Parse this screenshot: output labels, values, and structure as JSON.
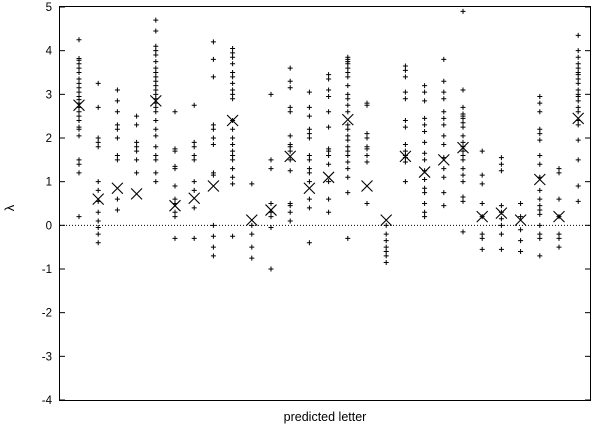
{
  "chart_data": {
    "type": "scatter",
    "title": "",
    "xlabel": "predicted letter",
    "ylabel": "λ",
    "ylim": [
      -4,
      5
    ],
    "yticks": [
      -4,
      -3,
      -2,
      -1,
      0,
      1,
      2,
      3,
      4,
      5
    ],
    "ytick_labels": [
      "-4",
      "-3",
      "-2",
      "-1",
      "0",
      "1",
      "2",
      "3",
      "4",
      "5"
    ],
    "reference_line": {
      "y": 0,
      "style": "dotted"
    },
    "grid": false,
    "legend": "none",
    "colors": {
      "marks": "#000000",
      "axis": "#000000",
      "background": "#ffffff"
    },
    "series": [
      {
        "marker": "plus",
        "groups": [
          {
            "x": 1,
            "values": [
              4.25,
              3.82,
              3.78,
              3.7,
              3.6,
              3.5,
              3.35,
              3.25,
              3.15,
              3.05,
              2.95,
              2.88,
              2.8,
              2.7,
              2.6,
              2.5,
              2.4,
              2.25,
              2.2,
              2.05,
              1.5,
              1.4,
              1.2,
              0.2
            ]
          },
          {
            "x": 2,
            "values": [
              3.25,
              2.7,
              2.0,
              1.9,
              1.8,
              1.0,
              0.8,
              0.55,
              0.3,
              0.1,
              -0.05,
              -0.2,
              -0.4
            ]
          },
          {
            "x": 3,
            "values": [
              3.1,
              2.85,
              2.6,
              2.3,
              2.2,
              2.0,
              1.6,
              1.5,
              0.6,
              0.35
            ]
          },
          {
            "x": 4,
            "values": [
              2.5,
              2.3,
              1.9,
              1.8,
              1.7,
              1.5,
              1.2
            ]
          },
          {
            "x": 5,
            "values": [
              4.7,
              4.45,
              4.1,
              4.0,
              3.9,
              3.75,
              3.6,
              3.5,
              3.4,
              3.3,
              3.2,
              3.1,
              3.0,
              2.9,
              2.8,
              2.7,
              2.6,
              2.4,
              2.2,
              2.05,
              1.8,
              1.6,
              1.5,
              1.2,
              1.0
            ]
          },
          {
            "x": 6,
            "values": [
              2.6,
              1.75,
              1.7,
              1.35,
              1.3,
              0.9,
              0.6,
              0.5,
              0.3,
              0.2,
              -0.3
            ]
          },
          {
            "x": 7,
            "values": [
              2.75,
              1.9,
              1.8,
              1.6,
              1.5,
              1.0,
              0.8,
              0.4,
              -0.3
            ]
          },
          {
            "x": 8,
            "values": [
              4.2,
              3.8,
              3.4,
              2.3,
              2.2,
              2.0,
              1.85,
              1.2,
              1.15,
              0.0,
              -0.25,
              -0.5,
              -0.7
            ]
          },
          {
            "x": 9,
            "values": [
              4.05,
              3.95,
              3.85,
              3.7,
              3.5,
              3.4,
              3.25,
              3.1,
              3.0,
              2.9,
              2.4,
              2.2,
              2.0,
              1.85,
              1.7,
              1.6,
              1.5,
              1.3,
              1.1,
              0.95,
              -0.25
            ]
          },
          {
            "x": 10,
            "values": [
              0.95,
              0.0,
              -0.2,
              -0.5,
              -0.75
            ]
          },
          {
            "x": 11,
            "values": [
              3.0,
              1.5,
              1.3,
              0.5,
              0.3,
              0.2,
              -0.05,
              -1.0
            ]
          },
          {
            "x": 12,
            "values": [
              3.6,
              3.3,
              3.15,
              2.7,
              2.6,
              2.05,
              1.85,
              1.8,
              1.7,
              1.5,
              1.25,
              0.5,
              0.45,
              0.3,
              0.1
            ]
          },
          {
            "x": 13,
            "values": [
              3.05,
              2.7,
              2.5,
              2.2,
              2.1,
              2.0,
              1.6,
              1.5,
              1.3,
              1.2,
              1.0,
              0.6,
              0.4,
              -0.4
            ]
          },
          {
            "x": 14,
            "values": [
              3.45,
              3.35,
              3.1,
              2.95,
              2.6,
              2.25,
              1.75,
              1.7,
              1.6,
              1.4,
              1.0,
              0.6,
              0.3
            ]
          },
          {
            "x": 15,
            "values": [
              3.85,
              3.8,
              3.75,
              3.7,
              3.6,
              3.5,
              3.4,
              3.2,
              3.0,
              2.9,
              2.75,
              2.6,
              2.3,
              2.2,
              2.05,
              1.95,
              1.8,
              1.7,
              1.6,
              1.45,
              1.3,
              1.1,
              0.75,
              -0.3
            ]
          },
          {
            "x": 16,
            "values": [
              2.8,
              2.75,
              2.1,
              2.0,
              1.8,
              1.75,
              1.6,
              1.45,
              0.5
            ]
          },
          {
            "x": 17,
            "values": [
              0.0,
              -0.2,
              -0.35,
              -0.5,
              -0.6,
              -0.7,
              -0.85
            ]
          },
          {
            "x": 18,
            "values": [
              3.65,
              3.55,
              3.4,
              3.05,
              2.9,
              2.4,
              2.25,
              1.85,
              1.7,
              1.6,
              1.55,
              1.45,
              1.0
            ]
          },
          {
            "x": 19,
            "values": [
              3.2,
              3.05,
              2.85,
              2.45,
              2.3,
              2.15,
              1.9,
              1.65,
              1.5,
              1.25,
              1.05,
              0.85,
              0.75,
              0.5,
              0.3,
              0.2
            ]
          },
          {
            "x": 20,
            "values": [
              3.8,
              3.3,
              3.05,
              2.9,
              2.6,
              2.45,
              2.3,
              2.05,
              1.85,
              1.55,
              1.3,
              1.1,
              0.75,
              0.45
            ]
          },
          {
            "x": 21,
            "values": [
              4.9,
              3.1,
              2.7,
              2.55,
              2.5,
              2.45,
              2.35,
              2.25,
              2.05,
              1.9,
              1.8,
              1.7,
              1.6,
              1.5,
              1.3,
              1.15,
              1.0,
              0.65,
              0.55,
              -0.15
            ]
          },
          {
            "x": 22,
            "values": [
              1.7,
              1.15,
              0.95,
              0.5,
              0.2,
              -0.2,
              -0.3,
              -0.55
            ]
          },
          {
            "x": 23,
            "values": [
              1.55,
              1.4,
              1.25,
              0.45,
              0.3,
              0.15,
              0.0,
              -0.2,
              -0.55
            ]
          },
          {
            "x": 24,
            "values": [
              0.5,
              0.2,
              -0.1,
              -0.35,
              -0.6
            ]
          },
          {
            "x": 25,
            "values": [
              2.95,
              2.8,
              2.6,
              2.2,
              2.1,
              1.95,
              1.6,
              1.4,
              1.1,
              0.8,
              0.6,
              0.45,
              0.35,
              0.25,
              0.0,
              -0.2,
              -0.3,
              -0.7
            ]
          },
          {
            "x": 26,
            "values": [
              1.3,
              1.2,
              0.6,
              0.2,
              -0.2,
              -0.3,
              -0.5
            ]
          },
          {
            "x": 27,
            "values": [
              4.35,
              4.0,
              3.85,
              3.7,
              3.6,
              3.5,
              3.45,
              3.35,
              3.25,
              3.1,
              3.0,
              2.95,
              2.85,
              2.7,
              2.6,
              2.4,
              2.3,
              1.95,
              1.5,
              0.9,
              0.55
            ]
          }
        ]
      },
      {
        "marker": "cross",
        "points": [
          {
            "x": 1,
            "y": 2.75
          },
          {
            "x": 2,
            "y": 0.6
          },
          {
            "x": 3,
            "y": 0.85
          },
          {
            "x": 4,
            "y": 0.72
          },
          {
            "x": 5,
            "y": 2.85
          },
          {
            "x": 6,
            "y": 0.45
          },
          {
            "x": 7,
            "y": 0.62
          },
          {
            "x": 8,
            "y": 0.9
          },
          {
            "x": 9,
            "y": 2.4
          },
          {
            "x": 10,
            "y": 0.12
          },
          {
            "x": 11,
            "y": 0.35
          },
          {
            "x": 12,
            "y": 1.58
          },
          {
            "x": 13,
            "y": 0.85
          },
          {
            "x": 14,
            "y": 1.1
          },
          {
            "x": 15,
            "y": 2.42
          },
          {
            "x": 16,
            "y": 0.9
          },
          {
            "x": 17,
            "y": 0.12
          },
          {
            "x": 18,
            "y": 1.58
          },
          {
            "x": 19,
            "y": 1.22
          },
          {
            "x": 20,
            "y": 1.5
          },
          {
            "x": 21,
            "y": 1.78
          },
          {
            "x": 22,
            "y": 0.2
          },
          {
            "x": 23,
            "y": 0.28
          },
          {
            "x": 24,
            "y": 0.12
          },
          {
            "x": 25,
            "y": 1.05
          },
          {
            "x": 26,
            "y": 0.2
          },
          {
            "x": 27,
            "y": 2.45
          }
        ]
      }
    ]
  }
}
